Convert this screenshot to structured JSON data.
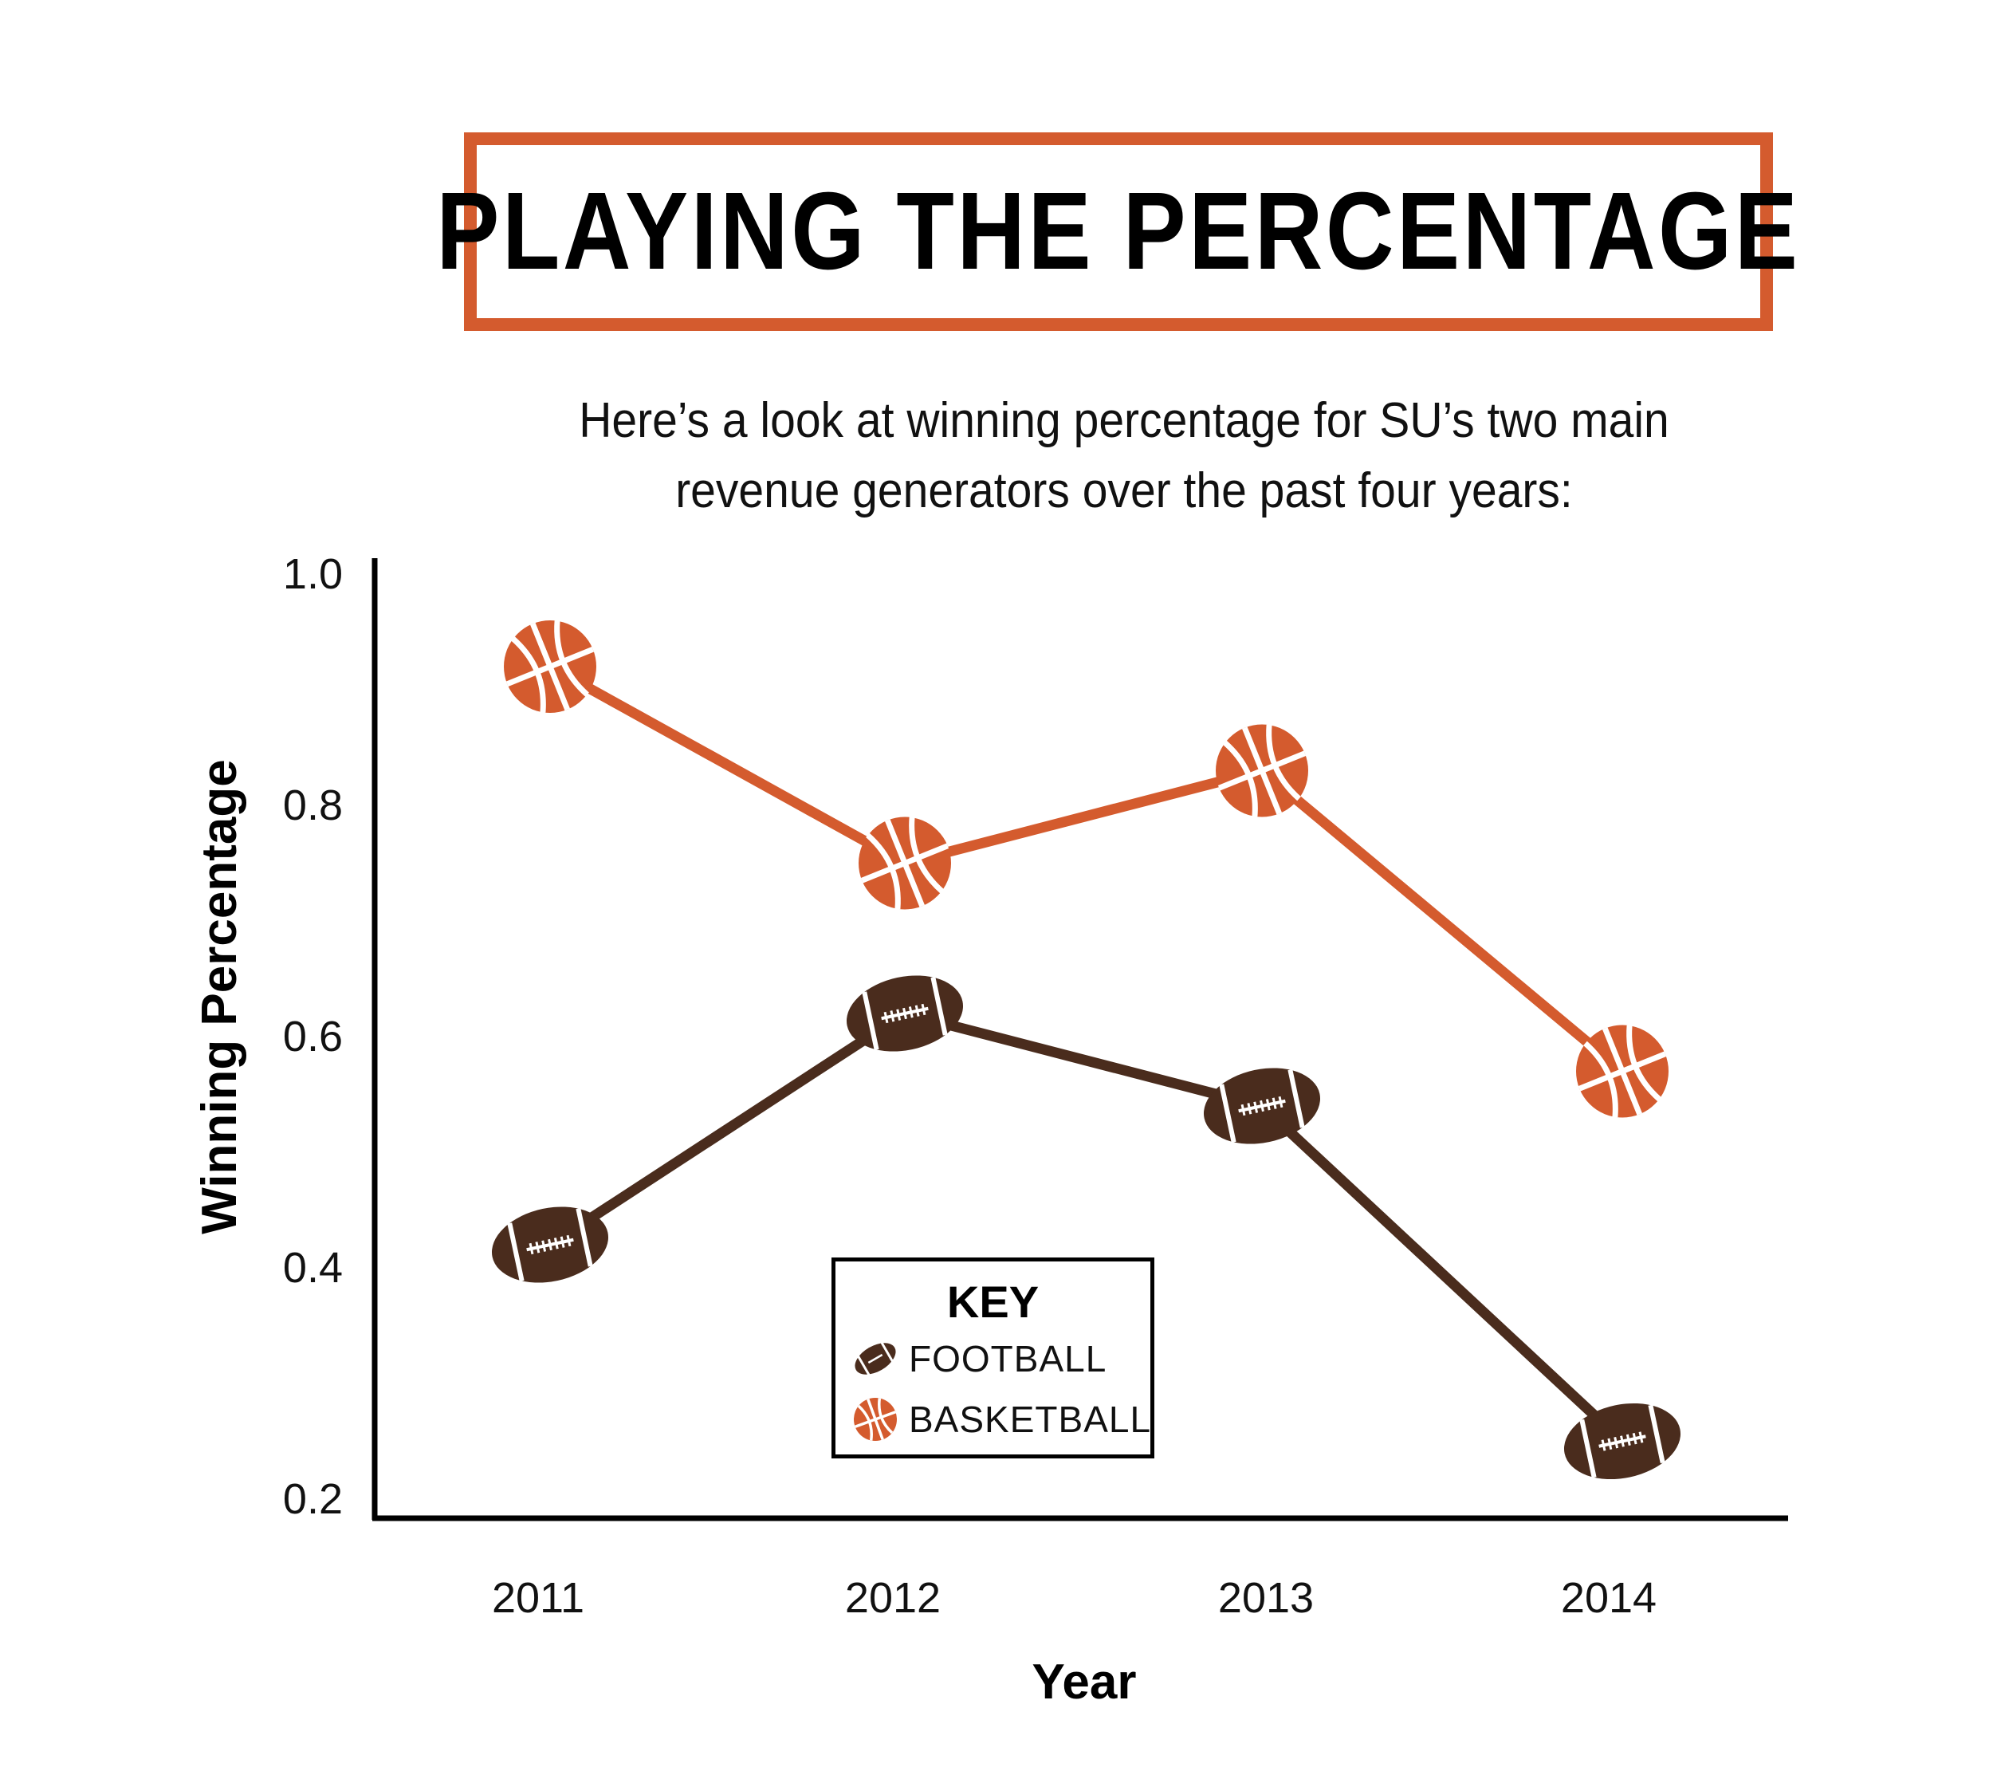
{
  "title": "PLAYING THE PERCENTAGE",
  "subtitle_line1": "Here’s a look at winning percentage for SU’s two main",
  "subtitle_line2": "revenue generators over the past four years:",
  "colors": {
    "basketball": "#d45b2e",
    "football": "#4a2c1d",
    "accent": "#d45b2e"
  },
  "legend": {
    "title": "KEY",
    "football_label": "FOOTBALL",
    "basketball_label": "BASKETBALL"
  },
  "chart_data": {
    "type": "line",
    "title": "PLAYING THE PERCENTAGE",
    "xlabel": "Year",
    "ylabel": "Winning Percentage",
    "categories": [
      "2011",
      "2012",
      "2013",
      "2014"
    ],
    "ylim": [
      0.2,
      1.0
    ],
    "yticks": [
      "1.0",
      "0.8",
      "0.6",
      "0.4",
      "0.2"
    ],
    "ytick_values": [
      1.0,
      0.8,
      0.6,
      0.4,
      0.2
    ],
    "grid": false,
    "legend_position": "center-bottom",
    "series": [
      {
        "name": "BASKETBALL",
        "marker": "basketball-icon",
        "values": [
          0.92,
          0.75,
          0.83,
          0.57
        ]
      },
      {
        "name": "FOOTBALL",
        "marker": "football-icon",
        "values": [
          0.42,
          0.62,
          0.54,
          0.25
        ]
      }
    ]
  }
}
